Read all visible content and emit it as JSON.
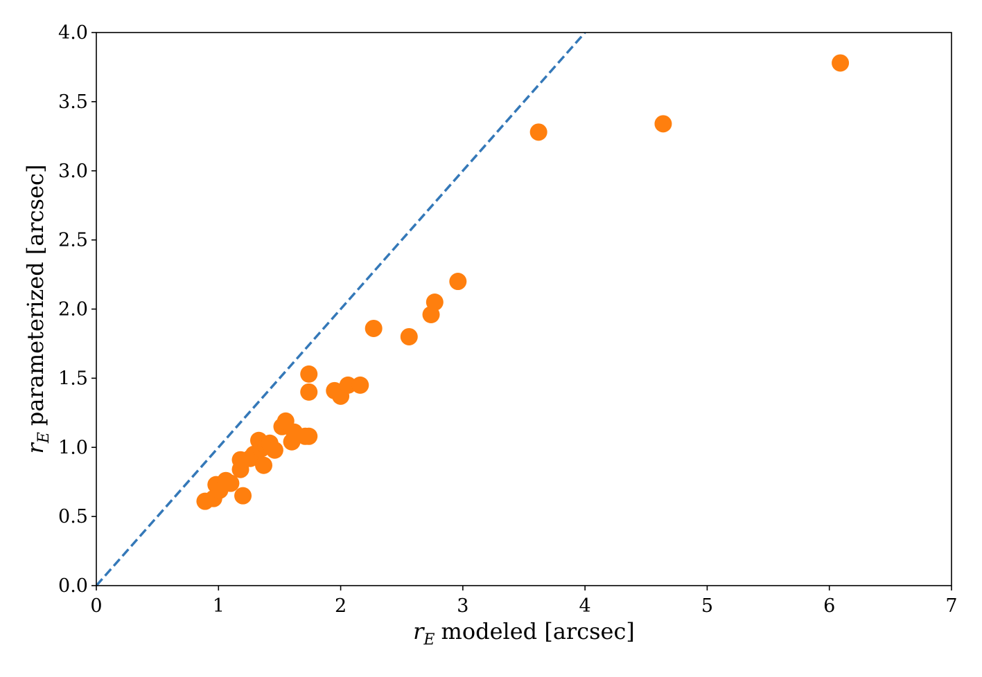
{
  "chart_data": {
    "type": "scatter",
    "title": "",
    "xlabel": {
      "symbol": "r",
      "subscript": "E",
      "text": "modeled [arcsec]"
    },
    "ylabel": {
      "symbol": "r",
      "subscript": "E",
      "text": "parameterized [arcsec]"
    },
    "xlim": [
      0,
      7
    ],
    "ylim": [
      0,
      4.0
    ],
    "xticks": [
      0,
      1,
      2,
      3,
      4,
      5,
      6,
      7
    ],
    "xtick_labels": [
      "0",
      "1",
      "2",
      "3",
      "4",
      "5",
      "6",
      "7"
    ],
    "yticks": [
      0,
      0.5,
      1.0,
      1.5,
      2.0,
      2.5,
      3.0,
      3.5,
      4.0
    ],
    "ytick_labels": [
      "0.0",
      "0.5",
      "1.0",
      "1.5",
      "2.0",
      "2.5",
      "3.0",
      "3.5",
      "4.0"
    ],
    "grid": false,
    "reference_line": {
      "style": "dashed",
      "color": "#3478b8",
      "x": [
        0,
        4
      ],
      "y": [
        0,
        4
      ]
    },
    "series": [
      {
        "color": "#ff7f0e",
        "points": [
          [
            0.89,
            0.61
          ],
          [
            0.96,
            0.63
          ],
          [
            0.98,
            0.73
          ],
          [
            1.01,
            0.69
          ],
          [
            1.06,
            0.76
          ],
          [
            1.1,
            0.74
          ],
          [
            1.18,
            0.84
          ],
          [
            1.18,
            0.91
          ],
          [
            1.2,
            0.65
          ],
          [
            1.26,
            0.92
          ],
          [
            1.29,
            0.95
          ],
          [
            1.33,
            1.05
          ],
          [
            1.35,
            0.99
          ],
          [
            1.37,
            0.87
          ],
          [
            1.39,
            1.01
          ],
          [
            1.42,
            1.03
          ],
          [
            1.46,
            0.98
          ],
          [
            1.52,
            1.15
          ],
          [
            1.55,
            1.19
          ],
          [
            1.6,
            1.04
          ],
          [
            1.62,
            1.11
          ],
          [
            1.71,
            1.08
          ],
          [
            1.74,
            1.08
          ],
          [
            1.74,
            1.4
          ],
          [
            1.74,
            1.53
          ],
          [
            1.95,
            1.41
          ],
          [
            2.0,
            1.37
          ],
          [
            2.06,
            1.45
          ],
          [
            2.16,
            1.45
          ],
          [
            2.27,
            1.86
          ],
          [
            2.56,
            1.8
          ],
          [
            2.74,
            1.96
          ],
          [
            2.77,
            2.05
          ],
          [
            2.96,
            2.2
          ],
          [
            3.62,
            3.28
          ],
          [
            4.64,
            3.34
          ],
          [
            6.09,
            3.78
          ]
        ]
      }
    ]
  }
}
